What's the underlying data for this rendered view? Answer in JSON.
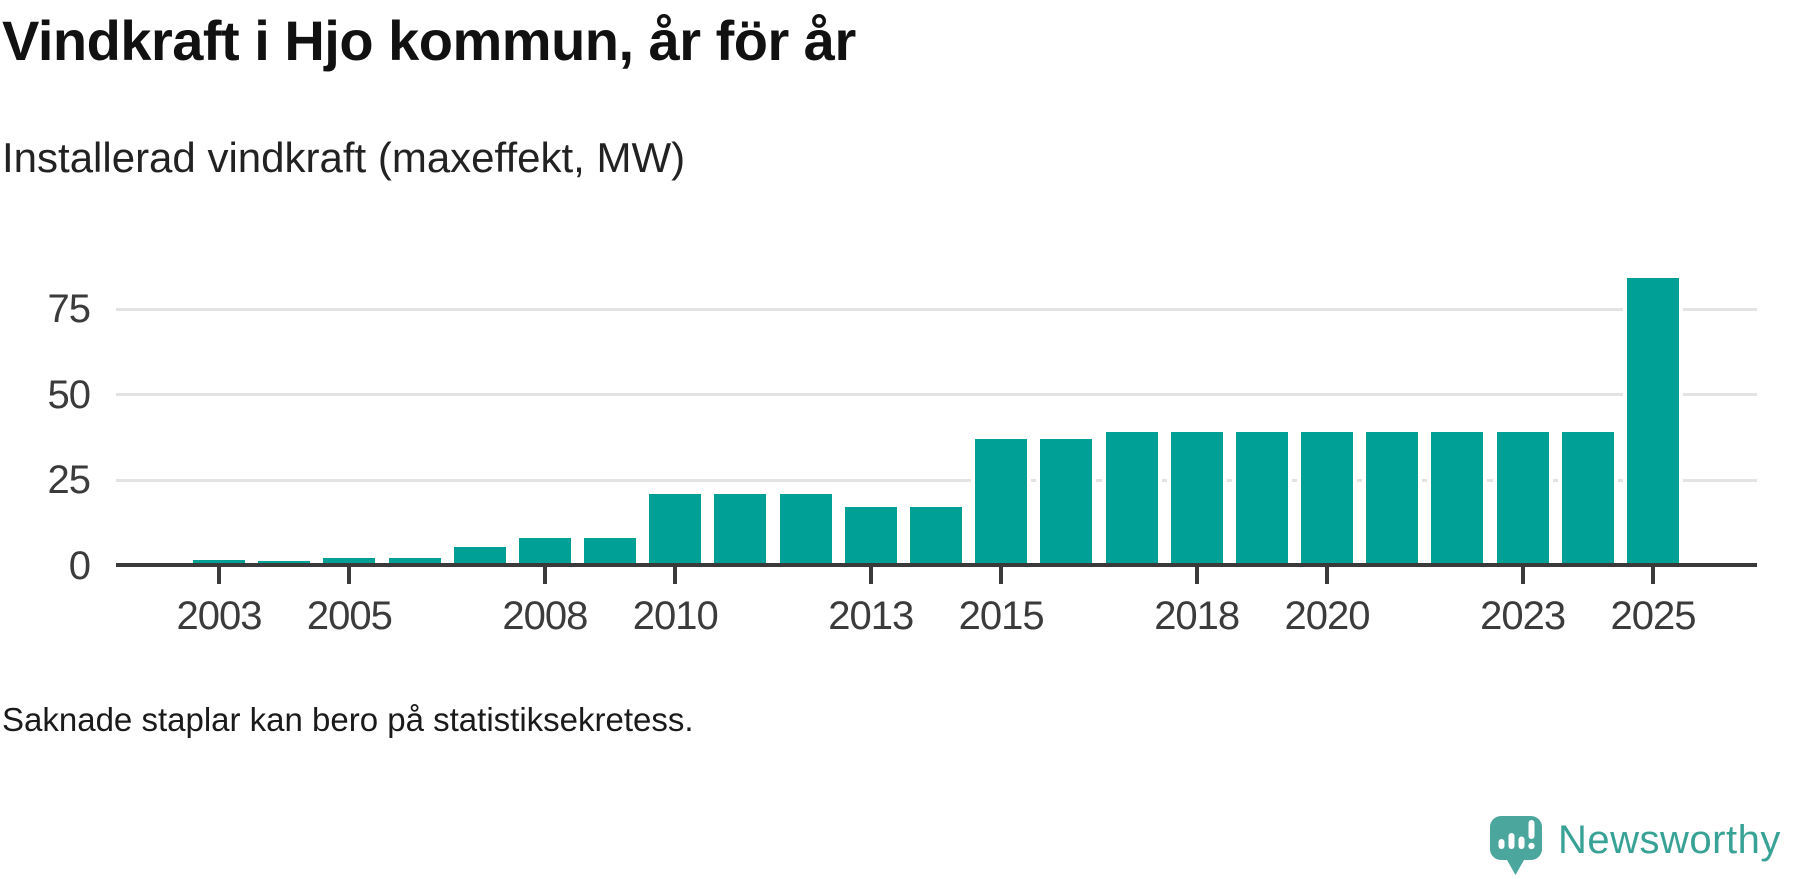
{
  "title": "Vindkraft i Hjo kommun, år för år",
  "subtitle": "Installerad vindkraft (maxeffekt, MW)",
  "footnote": "Saknade staplar kan bero på statistiksekretess.",
  "branding": {
    "name": "Newsworthy",
    "icon": "newsworthy-speech-bubble-barchart-icon",
    "text_color": "#39a296",
    "mark_color": "#4ba69e"
  },
  "colors": {
    "bar": "#00a096",
    "axis": "#3a3a3a",
    "gridline": "#e3e3e3",
    "tick_label": "#3b3b3b"
  },
  "chart_data": {
    "type": "bar",
    "title": "Vindkraft i Hjo kommun, år för år",
    "subtitle": "Installerad vindkraft (maxeffekt, MW)",
    "xlabel": "",
    "ylabel": "MW",
    "x": [
      2003,
      2004,
      2005,
      2006,
      2007,
      2008,
      2009,
      2010,
      2011,
      2012,
      2013,
      2014,
      2015,
      2016,
      2017,
      2018,
      2019,
      2020,
      2021,
      2022,
      2023,
      2024,
      2025
    ],
    "values": [
      1.5,
      1.4,
      2.3,
      2.3,
      5.5,
      8,
      8,
      21,
      21,
      21,
      17,
      17,
      37,
      37,
      39,
      39,
      39,
      39,
      39,
      39,
      39,
      39,
      84
    ],
    "y_ticks": [
      0,
      25,
      50,
      75
    ],
    "x_tick_labels": [
      "2003",
      "2005",
      "2008",
      "2010",
      "2013",
      "2015",
      "2018",
      "2020",
      "2023",
      "2025"
    ],
    "x_tick_years": [
      2003,
      2005,
      2008,
      2010,
      2013,
      2015,
      2018,
      2020,
      2023,
      2025
    ],
    "ylim": [
      0,
      85
    ],
    "grid": "horizontal",
    "legend": "none",
    "bar_color": "#00a096"
  }
}
